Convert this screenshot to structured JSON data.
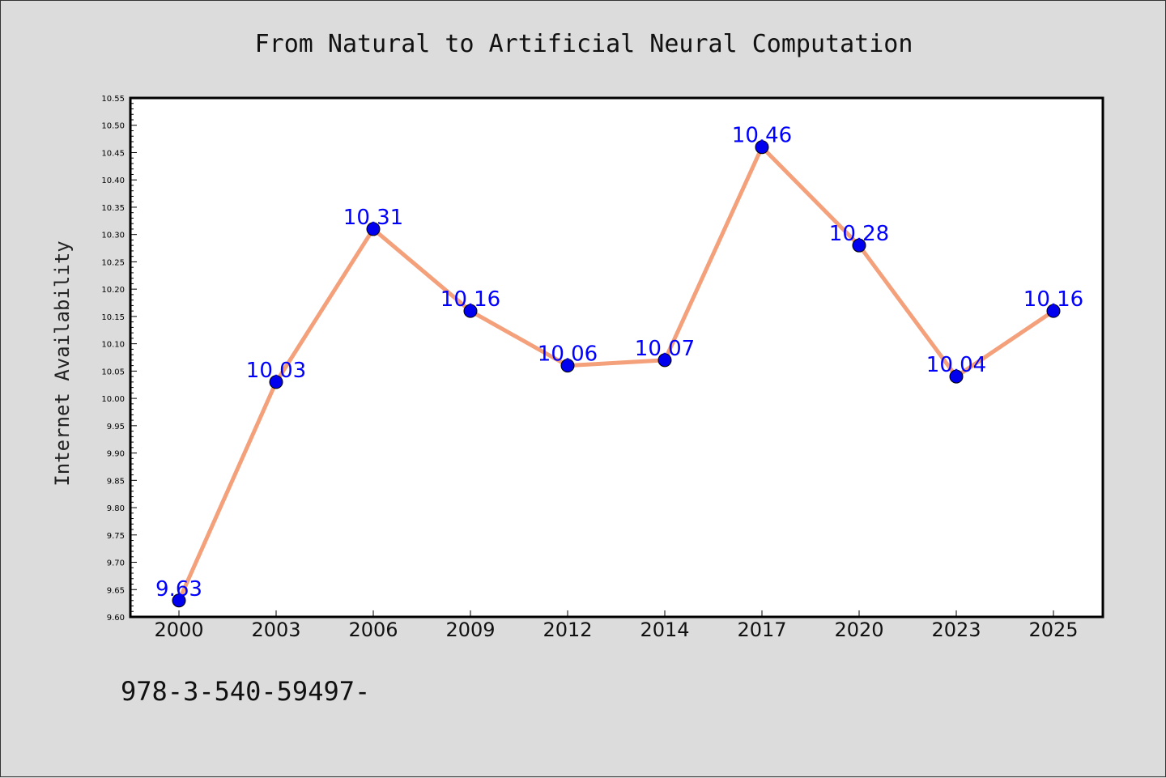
{
  "chart_data": {
    "type": "line",
    "title": "From Natural to Artificial Neural Computation",
    "xlabel": "",
    "ylabel": "Internet Availability",
    "categories": [
      "2000",
      "2003",
      "2006",
      "2009",
      "2012",
      "2014",
      "2017",
      "2020",
      "2023",
      "2025"
    ],
    "series": [
      {
        "values": [
          9.63,
          10.03,
          10.31,
          10.16,
          10.06,
          10.07,
          10.46,
          10.28,
          10.04,
          10.16
        ],
        "data_labels": [
          "9.63",
          "10.03",
          "10.31",
          "10.16",
          "10.06",
          "10.07",
          "10.46",
          "10.28",
          "10.04",
          "10.16"
        ],
        "line_color": "#f4a07a",
        "marker_color": "#0000ee"
      }
    ],
    "ylim": [
      9.6,
      10.55
    ],
    "yticks": [
      "9.60",
      "9.65",
      "9.70",
      "9.75",
      "9.80",
      "9.85",
      "9.90",
      "9.95",
      "10.00",
      "10.05",
      "10.10",
      "10.15",
      "10.20",
      "10.25",
      "10.30",
      "10.35",
      "10.40",
      "10.45",
      "10.50",
      "10.55"
    ],
    "grid": false,
    "legend": "none"
  },
  "footer_text": "978-3-540-59497-"
}
